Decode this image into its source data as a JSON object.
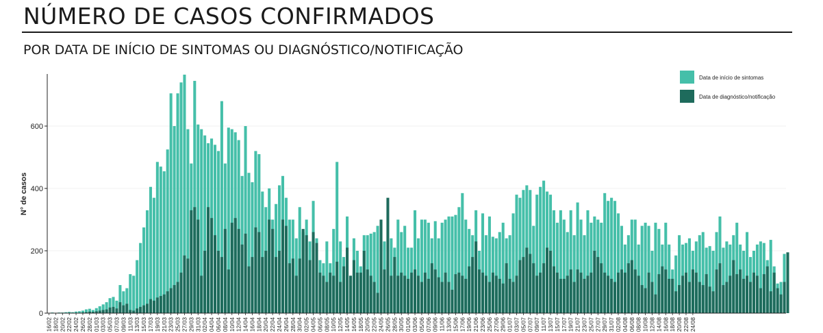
{
  "header": {
    "title": "NÚMERO DE CASOS CONFIRMADOS",
    "subtitle": "POR DATA DE INÍCIO DE SINTOMAS OU DIAGNÓSTICO/NOTIFICAÇÃO"
  },
  "colors": {
    "symptom": "#45bfa9",
    "diagnosis": "#1e6b5c",
    "axis": "#222222",
    "grid": "#f0f0f0"
  },
  "chart_data": {
    "type": "bar",
    "xlabel": "",
    "ylabel": "N° de casos",
    "ylim": [
      0,
      780
    ],
    "yticks": [
      0,
      200,
      400,
      600
    ],
    "grid": true,
    "legend": "top-right",
    "start_date": "2020-02-16",
    "tick_labels": [
      "16/02",
      "18/02",
      "20/02",
      "22/02",
      "24/02",
      "26/02",
      "28/02",
      "01/03",
      "03/03",
      "05/03",
      "07/03",
      "09/03",
      "11/03",
      "13/03",
      "15/03",
      "17/03",
      "19/03",
      "21/03",
      "23/03",
      "25/03",
      "27/03",
      "29/03",
      "31/03",
      "02/04",
      "04/04",
      "06/04",
      "08/04",
      "10/04",
      "12/04",
      "14/04",
      "16/04",
      "18/04",
      "20/04",
      "22/04",
      "24/04",
      "26/04",
      "28/04",
      "30/04",
      "02/05",
      "04/05",
      "06/05",
      "08/05",
      "10/05",
      "12/05",
      "14/05",
      "16/05",
      "18/05",
      "20/05",
      "22/05",
      "24/05",
      "26/05",
      "28/05",
      "30/05",
      "01/06",
      "03/06",
      "05/06",
      "07/06",
      "09/06",
      "11/06",
      "13/06",
      "15/06",
      "17/06",
      "19/06",
      "21/06",
      "23/06",
      "25/06",
      "27/06",
      "29/06",
      "01/07",
      "03/07",
      "05/07",
      "07/07",
      "09/07",
      "11/07",
      "13/07",
      "15/07",
      "17/07",
      "19/07",
      "21/07",
      "23/07",
      "25/07",
      "27/07",
      "29/07",
      "31/07",
      "02/08",
      "04/08",
      "06/08",
      "08/08",
      "10/08",
      "12/08",
      "14/08",
      "16/08",
      "18/08",
      "20/08",
      "22/08",
      "24/08"
    ],
    "series": [
      {
        "name": "Data de início de sintomas",
        "values": [
          1,
          2,
          1,
          2,
          2,
          3,
          4,
          3,
          5,
          6,
          8,
          12,
          14,
          10,
          16,
          22,
          28,
          35,
          48,
          52,
          40,
          90,
          70,
          80,
          125,
          120,
          170,
          225,
          275,
          330,
          405,
          370,
          485,
          470,
          455,
          525,
          705,
          600,
          705,
          740,
          765,
          590,
          480,
          745,
          605,
          590,
          570,
          545,
          560,
          540,
          520,
          680,
          480,
          595,
          590,
          580,
          555,
          440,
          600,
          450,
          420,
          520,
          510,
          390,
          340,
          400,
          300,
          350,
          410,
          440,
          370,
          300,
          300,
          240,
          340,
          260,
          300,
          230,
          360,
          240,
          170,
          160,
          230,
          160,
          270,
          485,
          230,
          180,
          310,
          120,
          240,
          200,
          150,
          250,
          250,
          255,
          260,
          280,
          220,
          230,
          170,
          240,
          210,
          300,
          260,
          280,
          210,
          210,
          330,
          240,
          300,
          300,
          290,
          240,
          295,
          240,
          290,
          300,
          310,
          310,
          315,
          340,
          385,
          300,
          270,
          250,
          330,
          200,
          320,
          250,
          310,
          245,
          240,
          260,
          290,
          240,
          250,
          320,
          380,
          370,
          395,
          410,
          395,
          280,
          380,
          405,
          425,
          390,
          380,
          330,
          290,
          330,
          300,
          260,
          330,
          250,
          355,
          300,
          250,
          330,
          290,
          310,
          300,
          290,
          385,
          360,
          370,
          360,
          320,
          280,
          220,
          250,
          300,
          300,
          220,
          280,
          290,
          280,
          200,
          290,
          270,
          220,
          290,
          220,
          140,
          185,
          250,
          220,
          225,
          240,
          200,
          230,
          250,
          260,
          210,
          215,
          200,
          260,
          310,
          210,
          230,
          220,
          250,
          290,
          220,
          200,
          260,
          180,
          200,
          220,
          230,
          225,
          170,
          235,
          150,
          95,
          100,
          190
        ],
        "color_key": "symptom"
      },
      {
        "name": "Data de diagnóstico/notificação",
        "values": [
          0,
          0,
          0,
          0,
          0,
          0,
          0,
          0,
          0,
          0,
          2,
          3,
          5,
          4,
          6,
          8,
          10,
          12,
          18,
          20,
          15,
          35,
          25,
          30,
          10,
          8,
          15,
          20,
          25,
          30,
          45,
          40,
          50,
          55,
          60,
          70,
          80,
          90,
          100,
          130,
          185,
          175,
          330,
          340,
          300,
          120,
          200,
          340,
          305,
          250,
          200,
          180,
          270,
          140,
          290,
          305,
          270,
          220,
          255,
          150,
          180,
          275,
          260,
          180,
          200,
          300,
          270,
          180,
          200,
          300,
          280,
          160,
          175,
          120,
          175,
          270,
          250,
          170,
          260,
          225,
          130,
          120,
          100,
          130,
          120,
          165,
          100,
          150,
          210,
          120,
          170,
          130,
          130,
          200,
          140,
          120,
          100,
          65,
          300,
          140,
          370,
          120,
          180,
          120,
          130,
          120,
          110,
          130,
          140,
          120,
          100,
          130,
          110,
          160,
          140,
          115,
          100,
          130,
          100,
          75,
          125,
          130,
          120,
          110,
          150,
          180,
          230,
          140,
          130,
          120,
          100,
          130,
          120,
          110,
          95,
          160,
          110,
          100,
          120,
          170,
          180,
          210,
          190,
          160,
          120,
          130,
          160,
          210,
          200,
          150,
          130,
          110,
          110,
          120,
          140,
          100,
          140,
          130,
          110,
          120,
          130,
          200,
          180,
          160,
          130,
          120,
          110,
          100,
          130,
          140,
          130,
          160,
          170,
          140,
          120,
          90,
          80,
          130,
          100,
          60,
          125,
          150,
          140,
          110,
          110,
          70,
          90,
          120,
          130,
          100,
          140,
          130,
          100,
          90,
          125,
          85,
          70,
          140,
          160,
          90,
          100,
          120,
          170,
          125,
          140,
          110,
          120,
          100,
          130,
          120,
          80,
          125,
          150,
          70,
          130,
          80,
          60,
          100,
          195
        ],
        "color_key": "diagnosis"
      }
    ]
  }
}
